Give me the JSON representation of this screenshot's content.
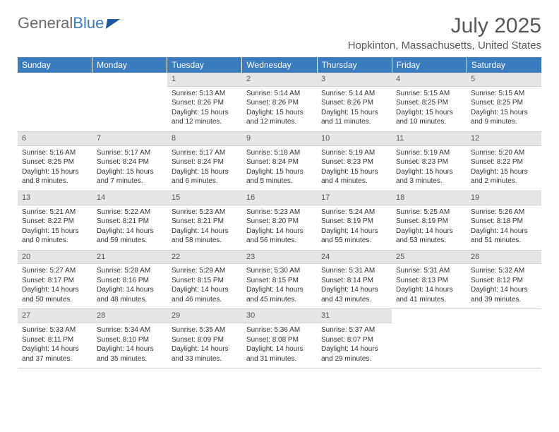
{
  "brand": {
    "word1": "General",
    "word2": "Blue"
  },
  "title": "July 2025",
  "location": "Hopkinton, Massachusetts, United States",
  "colors": {
    "header_bg": "#3b7bbf",
    "header_text": "#ffffff",
    "daynum_bg": "#e6e6e6",
    "text": "#333333",
    "title_color": "#595959"
  },
  "day_names": [
    "Sunday",
    "Monday",
    "Tuesday",
    "Wednesday",
    "Thursday",
    "Friday",
    "Saturday"
  ],
  "weeks": [
    [
      null,
      null,
      {
        "n": "1",
        "sunrise": "5:13 AM",
        "sunset": "8:26 PM",
        "daylight": "15 hours and 12 minutes."
      },
      {
        "n": "2",
        "sunrise": "5:14 AM",
        "sunset": "8:26 PM",
        "daylight": "15 hours and 12 minutes."
      },
      {
        "n": "3",
        "sunrise": "5:14 AM",
        "sunset": "8:26 PM",
        "daylight": "15 hours and 11 minutes."
      },
      {
        "n": "4",
        "sunrise": "5:15 AM",
        "sunset": "8:25 PM",
        "daylight": "15 hours and 10 minutes."
      },
      {
        "n": "5",
        "sunrise": "5:15 AM",
        "sunset": "8:25 PM",
        "daylight": "15 hours and 9 minutes."
      }
    ],
    [
      {
        "n": "6",
        "sunrise": "5:16 AM",
        "sunset": "8:25 PM",
        "daylight": "15 hours and 8 minutes."
      },
      {
        "n": "7",
        "sunrise": "5:17 AM",
        "sunset": "8:24 PM",
        "daylight": "15 hours and 7 minutes."
      },
      {
        "n": "8",
        "sunrise": "5:17 AM",
        "sunset": "8:24 PM",
        "daylight": "15 hours and 6 minutes."
      },
      {
        "n": "9",
        "sunrise": "5:18 AM",
        "sunset": "8:24 PM",
        "daylight": "15 hours and 5 minutes."
      },
      {
        "n": "10",
        "sunrise": "5:19 AM",
        "sunset": "8:23 PM",
        "daylight": "15 hours and 4 minutes."
      },
      {
        "n": "11",
        "sunrise": "5:19 AM",
        "sunset": "8:23 PM",
        "daylight": "15 hours and 3 minutes."
      },
      {
        "n": "12",
        "sunrise": "5:20 AM",
        "sunset": "8:22 PM",
        "daylight": "15 hours and 2 minutes."
      }
    ],
    [
      {
        "n": "13",
        "sunrise": "5:21 AM",
        "sunset": "8:22 PM",
        "daylight": "15 hours and 0 minutes."
      },
      {
        "n": "14",
        "sunrise": "5:22 AM",
        "sunset": "8:21 PM",
        "daylight": "14 hours and 59 minutes."
      },
      {
        "n": "15",
        "sunrise": "5:23 AM",
        "sunset": "8:21 PM",
        "daylight": "14 hours and 58 minutes."
      },
      {
        "n": "16",
        "sunrise": "5:23 AM",
        "sunset": "8:20 PM",
        "daylight": "14 hours and 56 minutes."
      },
      {
        "n": "17",
        "sunrise": "5:24 AM",
        "sunset": "8:19 PM",
        "daylight": "14 hours and 55 minutes."
      },
      {
        "n": "18",
        "sunrise": "5:25 AM",
        "sunset": "8:19 PM",
        "daylight": "14 hours and 53 minutes."
      },
      {
        "n": "19",
        "sunrise": "5:26 AM",
        "sunset": "8:18 PM",
        "daylight": "14 hours and 51 minutes."
      }
    ],
    [
      {
        "n": "20",
        "sunrise": "5:27 AM",
        "sunset": "8:17 PM",
        "daylight": "14 hours and 50 minutes."
      },
      {
        "n": "21",
        "sunrise": "5:28 AM",
        "sunset": "8:16 PM",
        "daylight": "14 hours and 48 minutes."
      },
      {
        "n": "22",
        "sunrise": "5:29 AM",
        "sunset": "8:15 PM",
        "daylight": "14 hours and 46 minutes."
      },
      {
        "n": "23",
        "sunrise": "5:30 AM",
        "sunset": "8:15 PM",
        "daylight": "14 hours and 45 minutes."
      },
      {
        "n": "24",
        "sunrise": "5:31 AM",
        "sunset": "8:14 PM",
        "daylight": "14 hours and 43 minutes."
      },
      {
        "n": "25",
        "sunrise": "5:31 AM",
        "sunset": "8:13 PM",
        "daylight": "14 hours and 41 minutes."
      },
      {
        "n": "26",
        "sunrise": "5:32 AM",
        "sunset": "8:12 PM",
        "daylight": "14 hours and 39 minutes."
      }
    ],
    [
      {
        "n": "27",
        "sunrise": "5:33 AM",
        "sunset": "8:11 PM",
        "daylight": "14 hours and 37 minutes."
      },
      {
        "n": "28",
        "sunrise": "5:34 AM",
        "sunset": "8:10 PM",
        "daylight": "14 hours and 35 minutes."
      },
      {
        "n": "29",
        "sunrise": "5:35 AM",
        "sunset": "8:09 PM",
        "daylight": "14 hours and 33 minutes."
      },
      {
        "n": "30",
        "sunrise": "5:36 AM",
        "sunset": "8:08 PM",
        "daylight": "14 hours and 31 minutes."
      },
      {
        "n": "31",
        "sunrise": "5:37 AM",
        "sunset": "8:07 PM",
        "daylight": "14 hours and 29 minutes."
      },
      null,
      null
    ]
  ],
  "labels": {
    "sunrise": "Sunrise:",
    "sunset": "Sunset:",
    "daylight": "Daylight:"
  }
}
